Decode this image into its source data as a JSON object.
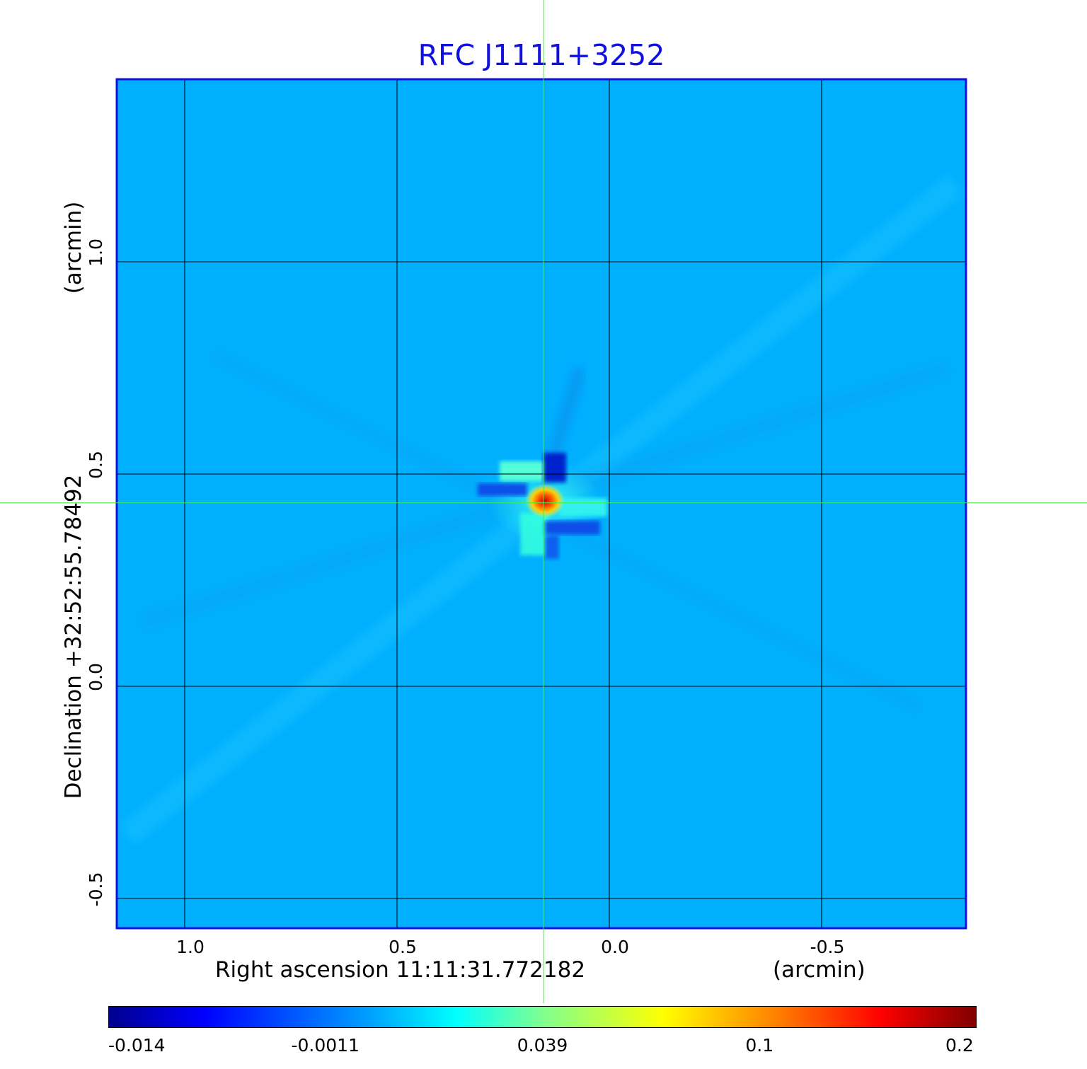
{
  "chart_data": {
    "type": "heatmap",
    "title": "RFC J1111+3252",
    "xlabel": "Right ascension  11:11:31.772182",
    "x_unit": "(arcmin)",
    "ylabel": "Declination  +32:52:55.78492",
    "y_unit": "(arcmin)",
    "xlim": [
      1.16,
      -0.84
    ],
    "ylim": [
      -0.57,
      1.43
    ],
    "x_ticks": [
      "1.0",
      "0.5",
      "0.0",
      "-0.5"
    ],
    "x_tick_values": [
      1.0,
      0.5,
      0.0,
      -0.5
    ],
    "y_ticks": [
      "1.0",
      "0.5",
      "0.0",
      "-0.5"
    ],
    "y_tick_values": [
      1.0,
      0.5,
      0.0,
      -0.5
    ],
    "grid": true,
    "crosshair": {
      "x": 0.155,
      "y": 0.432,
      "color": "#44ee44"
    },
    "peak": {
      "x": 0.155,
      "y": 0.432,
      "value": 0.2
    },
    "colorbar": {
      "colormap": "jet",
      "labels": [
        "-0.014",
        "-0.0011",
        "0.039",
        "0.1",
        "0.2"
      ],
      "position": "bottom"
    },
    "colors": {
      "title": "#1111dd",
      "frame": "#1111dd",
      "background": "#00b0ff"
    }
  }
}
